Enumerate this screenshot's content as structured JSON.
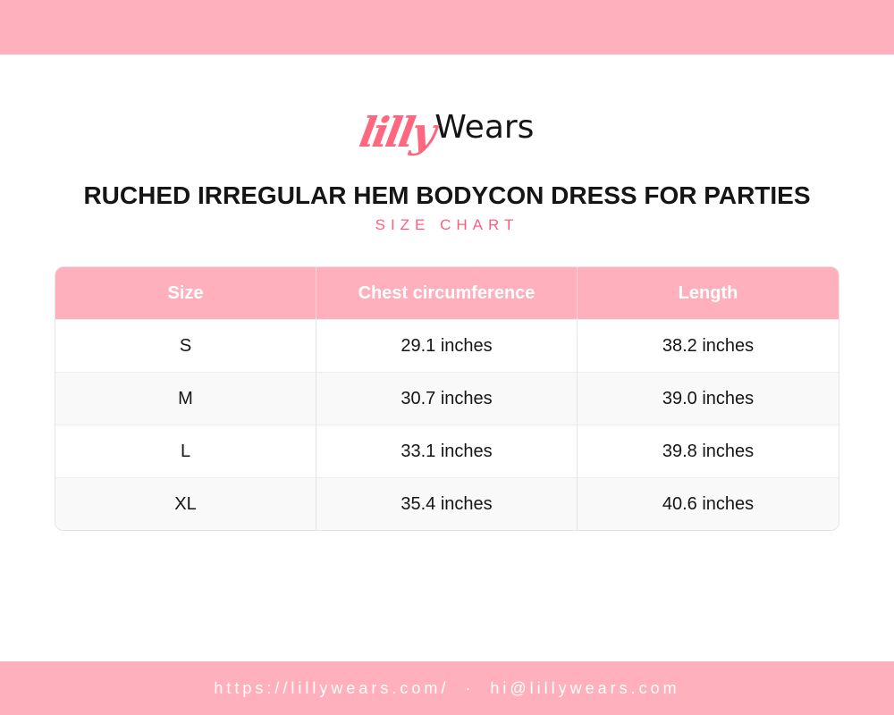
{
  "brand": {
    "logo_part1": "lilly",
    "logo_part2": "Wears",
    "accent_color": "#ff5f7e",
    "band_color": "#ffb0bc"
  },
  "title": "RUCHED IRREGULAR HEM BODYCON DRESS FOR PARTIES",
  "subtitle": "SIZE CHART",
  "table": {
    "headers": [
      "Size",
      "Chest circumference",
      "Length"
    ],
    "rows": [
      [
        "S",
        "29.1 inches",
        "38.2 inches"
      ],
      [
        "M",
        "30.7 inches",
        "39.0 inches"
      ],
      [
        "L",
        "33.1 inches",
        "39.8 inches"
      ],
      [
        "XL",
        "35.4 inches",
        "40.6 inches"
      ]
    ]
  },
  "footer": {
    "website": "https://lillywears.com/",
    "separator": "·",
    "email": "hi@lillywears.com"
  }
}
